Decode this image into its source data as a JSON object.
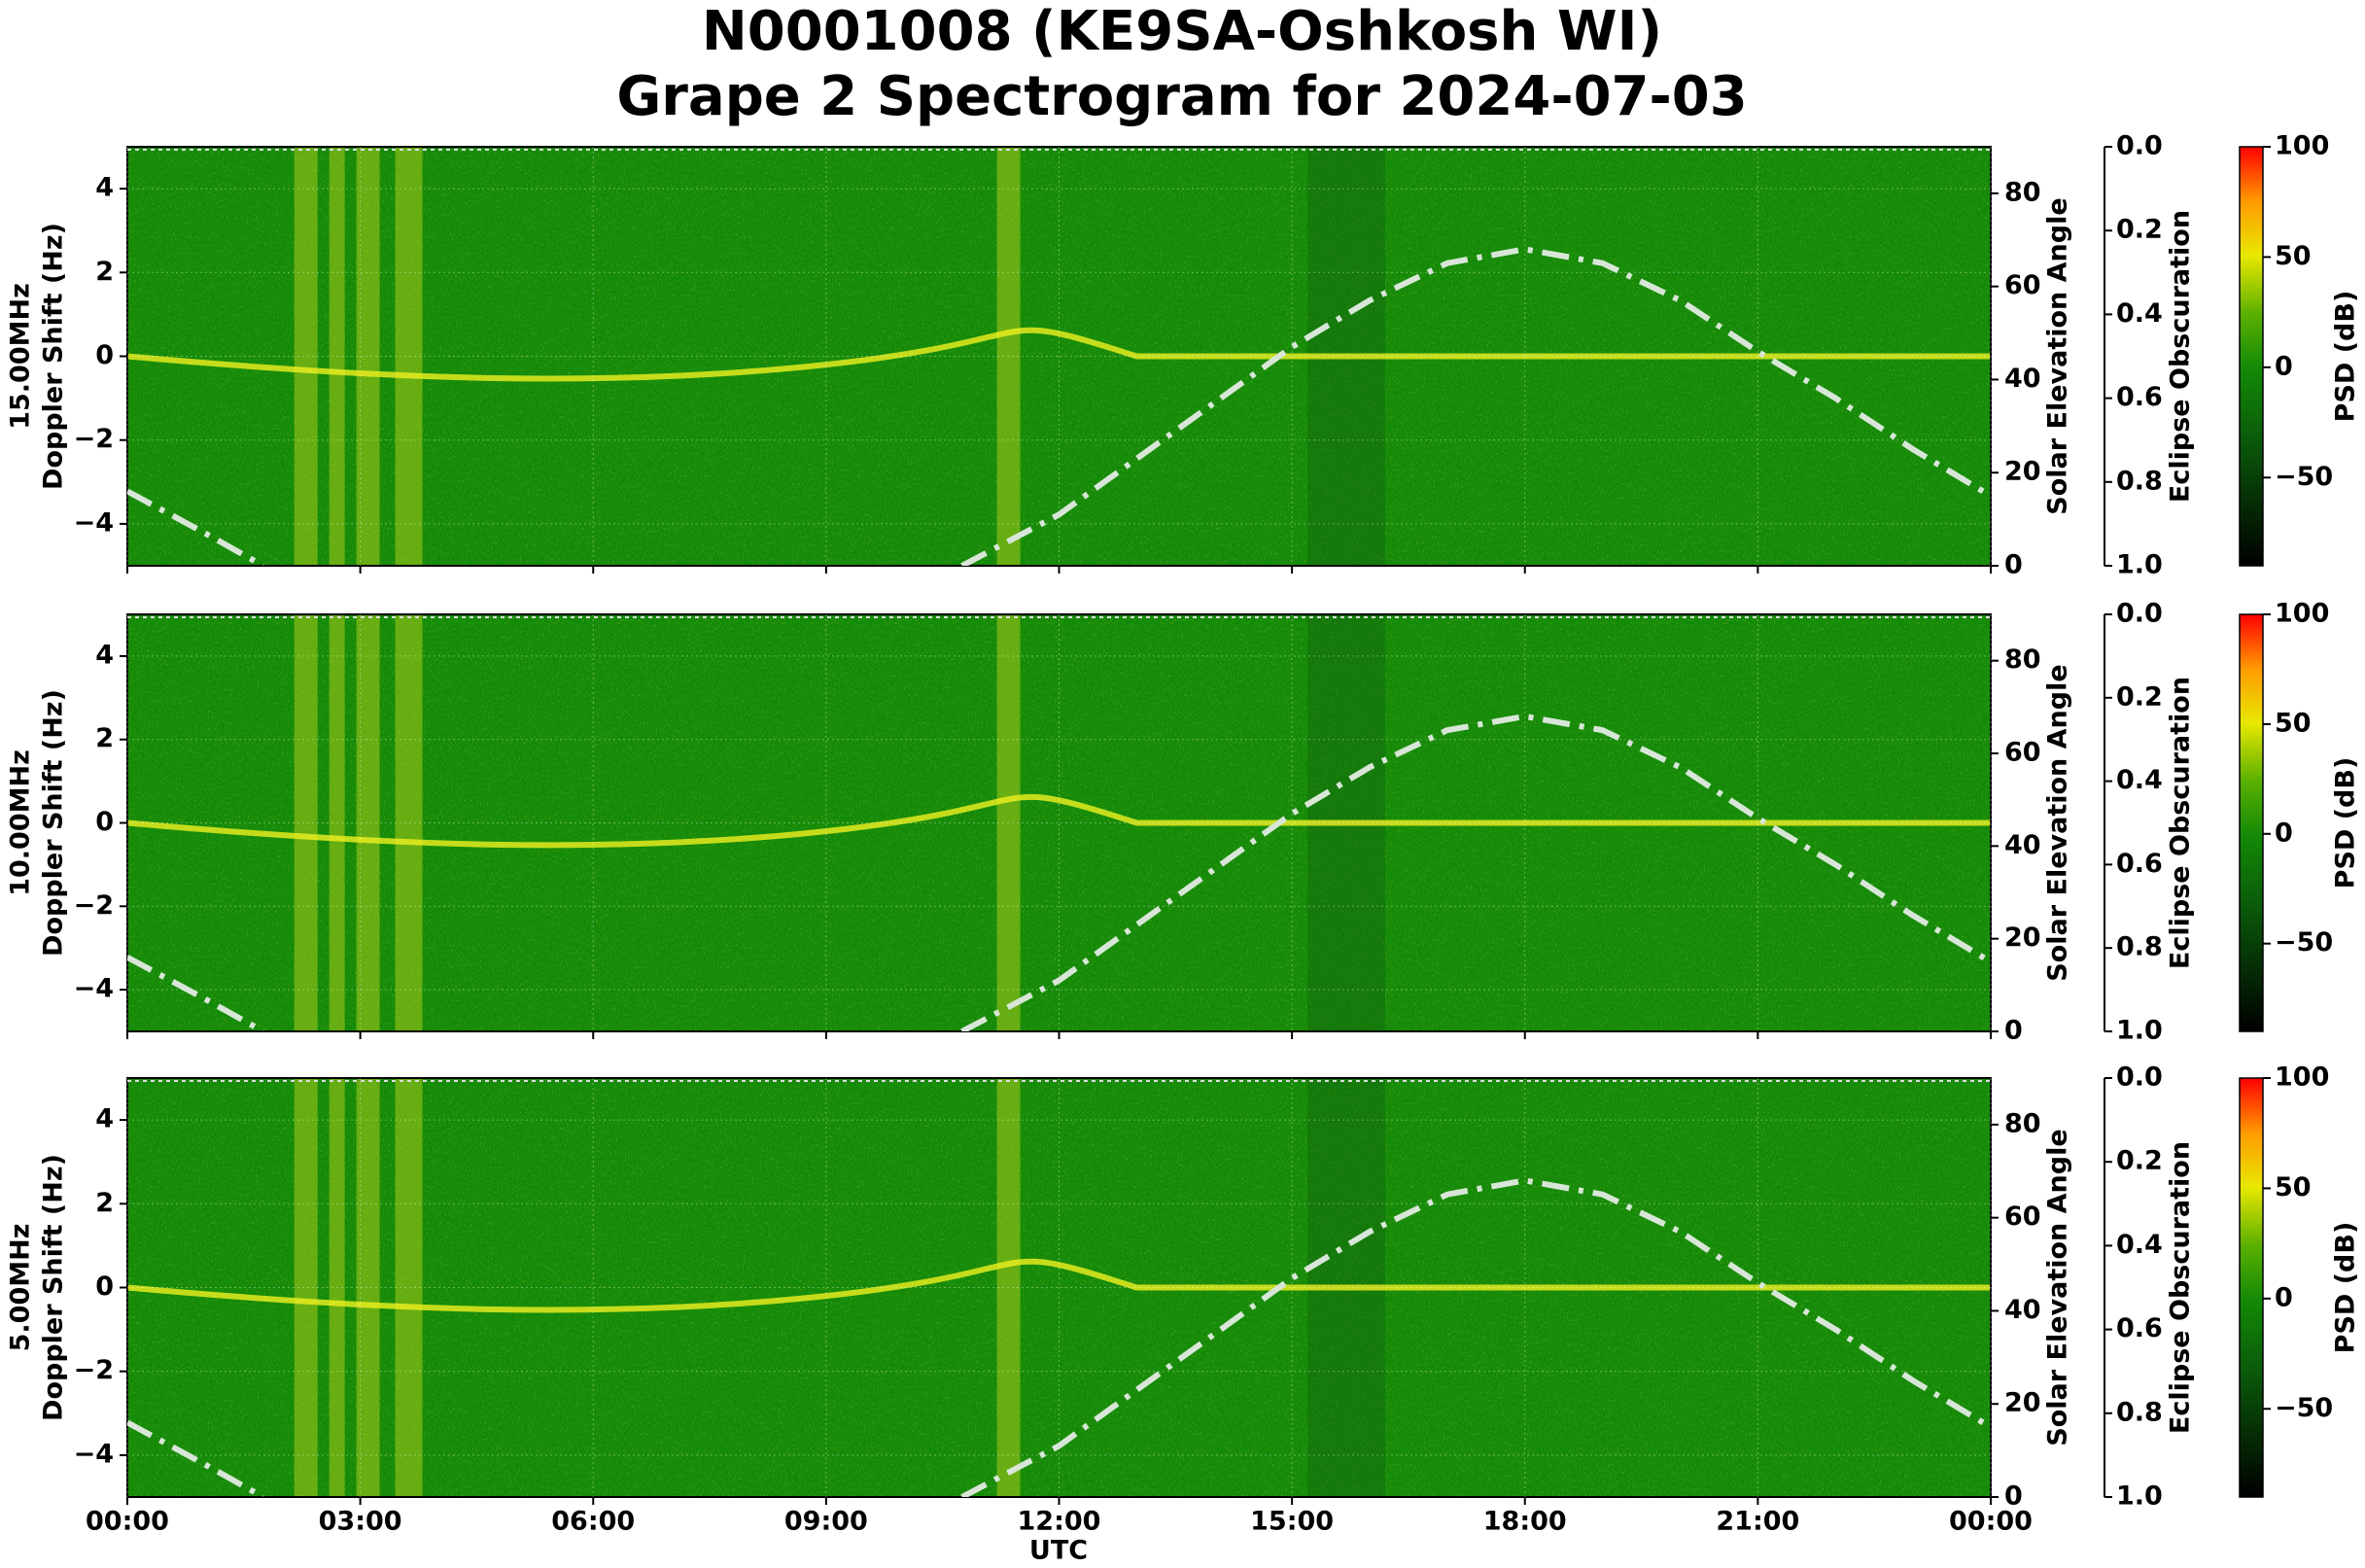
{
  "title": [
    "N0001008 (KE9SA-Oshkosh WI)",
    "Grape 2 Spectrogram for 2024-07-03"
  ],
  "xlabel": "UTC",
  "xlim": [
    0,
    24
  ],
  "xticks": [
    {
      "value": 0,
      "label": "00:00"
    },
    {
      "value": 3,
      "label": "03:00"
    },
    {
      "value": 6,
      "label": "06:00"
    },
    {
      "value": 9,
      "label": "09:00"
    },
    {
      "value": 12,
      "label": "12:00"
    },
    {
      "value": 15,
      "label": "15:00"
    },
    {
      "value": 18,
      "label": "18:00"
    },
    {
      "value": 21,
      "label": "21:00"
    },
    {
      "value": 24,
      "label": "00:00"
    }
  ],
  "chart_data": [
    {
      "type": "spectrogram",
      "ylabel": [
        "15.00MHz",
        "Doppler Shift (Hz)"
      ],
      "ylim": [
        -5,
        5
      ],
      "yticks": [
        {
          "value": -4,
          "label": "−4"
        },
        {
          "value": -2,
          "label": "−2"
        },
        0,
        2,
        4
      ],
      "y2label": "Solar Elevation Angle",
      "y2lim": [
        0,
        90
      ],
      "y2ticks": [
        0,
        20,
        40,
        60,
        80
      ],
      "y3label": "Eclipse Obscuration",
      "y3lim": [
        1,
        0
      ],
      "y3ticks": [
        {
          "value": 0,
          "label": "0.0"
        },
        {
          "value": 0.2,
          "label": "0.2"
        },
        {
          "value": 0.4,
          "label": "0.4"
        },
        {
          "value": 0.6,
          "label": "0.6"
        },
        {
          "value": 0.8,
          "label": "0.8"
        },
        {
          "value": 1,
          "label": "1.0"
        }
      ],
      "colorbar_label": "PSD (dB)",
      "clim": [
        -90,
        100
      ],
      "cticks": [
        {
          "value": -50,
          "label": "−50"
        },
        0,
        50,
        100
      ],
      "series": [
        {
          "name": "Solar Elevation Angle",
          "color": "#d8e6d8",
          "axis": "y2",
          "x": [
            0,
            1,
            1.75,
            6,
            10.75,
            12,
            13,
            14,
            15,
            16,
            17,
            18,
            19,
            20,
            21,
            22,
            23,
            24
          ],
          "values": [
            16,
            7,
            0,
            null,
            0,
            11,
            23,
            35,
            47,
            57,
            65,
            68,
            65,
            57,
            46,
            36,
            25,
            15
          ]
        }
      ]
    },
    {
      "type": "spectrogram",
      "ylabel": [
        "10.00MHz",
        "Doppler Shift (Hz)"
      ],
      "ylim": [
        -5,
        5
      ],
      "yticks": [
        {
          "value": -4,
          "label": "−4"
        },
        {
          "value": -2,
          "label": "−2"
        },
        0,
        2,
        4
      ],
      "y2label": "Solar Elevation Angle",
      "y2lim": [
        0,
        90
      ],
      "y2ticks": [
        0,
        20,
        40,
        60,
        80
      ],
      "y3label": "Eclipse Obscuration",
      "y3lim": [
        1,
        0
      ],
      "y3ticks": [
        {
          "value": 0,
          "label": "0.0"
        },
        {
          "value": 0.2,
          "label": "0.2"
        },
        {
          "value": 0.4,
          "label": "0.4"
        },
        {
          "value": 0.6,
          "label": "0.6"
        },
        {
          "value": 0.8,
          "label": "0.8"
        },
        {
          "value": 1,
          "label": "1.0"
        }
      ],
      "colorbar_label": "PSD (dB)",
      "clim": [
        -90,
        100
      ],
      "cticks": [
        {
          "value": -50,
          "label": "−50"
        },
        0,
        50,
        100
      ],
      "series": [
        {
          "name": "Solar Elevation Angle",
          "color": "#d8e6d8",
          "axis": "y2",
          "x": [
            0,
            1,
            1.75,
            6,
            10.75,
            12,
            13,
            14,
            15,
            16,
            17,
            18,
            19,
            20,
            21,
            22,
            23,
            24
          ],
          "values": [
            16,
            7,
            0,
            null,
            0,
            11,
            23,
            35,
            47,
            57,
            65,
            68,
            65,
            57,
            46,
            36,
            25,
            15
          ]
        }
      ]
    },
    {
      "type": "spectrogram",
      "ylabel": [
        "5.00MHz",
        "Doppler Shift (Hz)"
      ],
      "ylim": [
        -5,
        5
      ],
      "yticks": [
        {
          "value": -4,
          "label": "−4"
        },
        {
          "value": -2,
          "label": "−2"
        },
        0,
        2,
        4
      ],
      "y2label": "Solar Elevation Angle",
      "y2lim": [
        0,
        90
      ],
      "y2ticks": [
        0,
        20,
        40,
        60,
        80
      ],
      "y3label": "Eclipse Obscuration",
      "y3lim": [
        1,
        0
      ],
      "y3ticks": [
        {
          "value": 0,
          "label": "0.0"
        },
        {
          "value": 0.2,
          "label": "0.2"
        },
        {
          "value": 0.4,
          "label": "0.4"
        },
        {
          "value": 0.6,
          "label": "0.6"
        },
        {
          "value": 0.8,
          "label": "0.8"
        },
        {
          "value": 1,
          "label": "1.0"
        }
      ],
      "colorbar_label": "PSD (dB)",
      "clim": [
        -90,
        100
      ],
      "cticks": [
        {
          "value": -50,
          "label": "−50"
        },
        0,
        50,
        100
      ],
      "series": [
        {
          "name": "Solar Elevation Angle",
          "color": "#d8e6d8",
          "axis": "y2",
          "x": [
            0,
            1,
            1.75,
            6,
            10.75,
            12,
            13,
            14,
            15,
            16,
            17,
            18,
            19,
            20,
            21,
            22,
            23,
            24
          ],
          "values": [
            16,
            7,
            0,
            null,
            0,
            11,
            23,
            35,
            47,
            57,
            65,
            68,
            65,
            57,
            46,
            36,
            25,
            15
          ]
        }
      ]
    }
  ]
}
